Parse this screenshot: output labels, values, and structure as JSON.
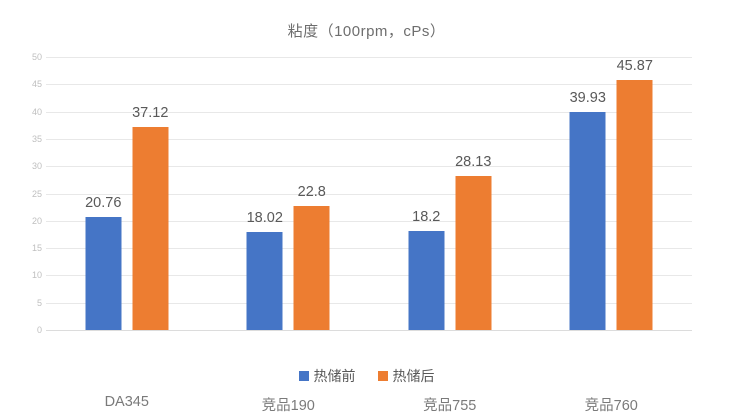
{
  "chart_data": {
    "type": "bar",
    "title": "粘度（100rpm，cPs）",
    "categories": [
      "DA345",
      "竞品190",
      "竞品755",
      "竞品760"
    ],
    "series": [
      {
        "name": "热储前",
        "color": "#4575c6",
        "values": [
          20.76,
          18.02,
          18.2,
          39.93
        ],
        "labels": [
          "20.76",
          "18.02",
          "18.2",
          "39.93"
        ]
      },
      {
        "name": "热储后",
        "color": "#ed7d31",
        "values": [
          37.12,
          22.8,
          28.13,
          45.87
        ],
        "labels": [
          "37.12",
          "22.8",
          "28.13",
          "45.87"
        ]
      }
    ],
    "xlabel": "",
    "ylabel": "",
    "ylim": [
      0,
      50
    ],
    "ytick_interval": 5,
    "yticks": [
      0,
      5,
      10,
      15,
      20,
      25,
      30,
      35,
      40,
      45,
      50
    ],
    "grid": true,
    "legend_position": "bottom",
    "colors": {
      "gridline": "#e8e8e8",
      "title_text": "#6e6e6e",
      "tick_text": "#bfbfbf",
      "category_text": "#7a7a7a",
      "value_label_text": "#595959"
    }
  }
}
